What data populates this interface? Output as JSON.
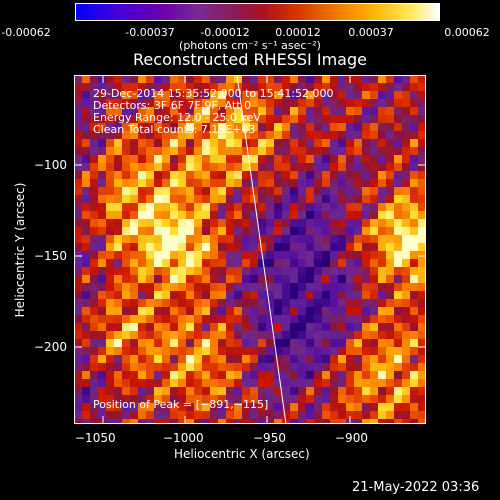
{
  "colorbar": {
    "ticks": [
      "-0.00062",
      "-0.00037",
      "-0.00012",
      "0.00012",
      "0.00037",
      "0.00062"
    ],
    "units": "(photons cm⁻² s⁻¹ asec⁻²)"
  },
  "plot": {
    "title": "Reconstructed RHESSI Image",
    "xlabel": "Heliocentric X (arcsec)",
    "ylabel": "Heliocentric Y (arcsec)",
    "xticks": [
      "−1050",
      "−1000",
      "−950",
      "−900"
    ],
    "yticks": [
      "−100",
      "−150",
      "−200"
    ],
    "annotations": [
      "29-Dec-2014 15:35:52.000 to 15:41:52.000",
      "Detectors: 3F 6F 7F 9F, Att 0",
      "Energy Range: 12.0 - 25.0 keV",
      "Clean     Total counts: 7.13E+03"
    ],
    "peak_label": "Position of Peak = [−891,−115]"
  },
  "timestamp": "21-May-2022 03:36",
  "chart_data": {
    "type": "heatmap",
    "title": "Reconstructed RHESSI Image",
    "xlabel": "Heliocentric X (arcsec)",
    "ylabel": "Heliocentric Y (arcsec)",
    "xlim": [
      -1062,
      -870
    ],
    "ylim": [
      -245,
      -57
    ],
    "color_range": [
      -0.00062,
      0.00062
    ],
    "peak": [
      -891,
      -115
    ]
  }
}
